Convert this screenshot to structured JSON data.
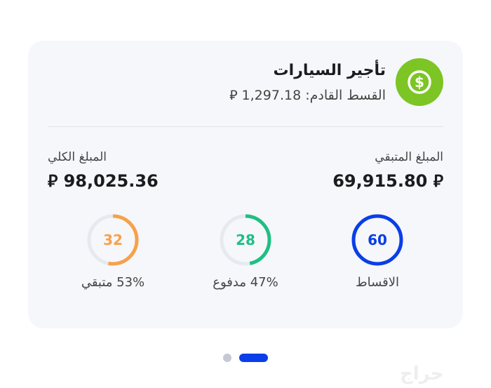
{
  "card": {
    "icon": "dollar-circle-icon",
    "title": "تأجير السيارات",
    "next_installment": "القسط القادم: 1,297.18 ⃁",
    "remaining_label": "المبلغ المتبقي",
    "remaining_amount": "⃁ 69,915.80",
    "total_label": "المبلغ الكلي",
    "total_amount": "⃁ 98,025.36",
    "rings": [
      {
        "value": "60",
        "label": "الاقساط",
        "color": "#0a3ee8",
        "fraction": 1
      },
      {
        "value": "28",
        "label": "47% مدفوع",
        "color": "#1fbf83",
        "fraction": 0.47
      },
      {
        "value": "32",
        "label": "53% متبقي",
        "color": "#f7a14b",
        "fraction": 0.53
      }
    ]
  },
  "pager": {
    "pages": 2,
    "active": 2,
    "active_color": "#0a3ee8"
  },
  "watermark": "حراج"
}
